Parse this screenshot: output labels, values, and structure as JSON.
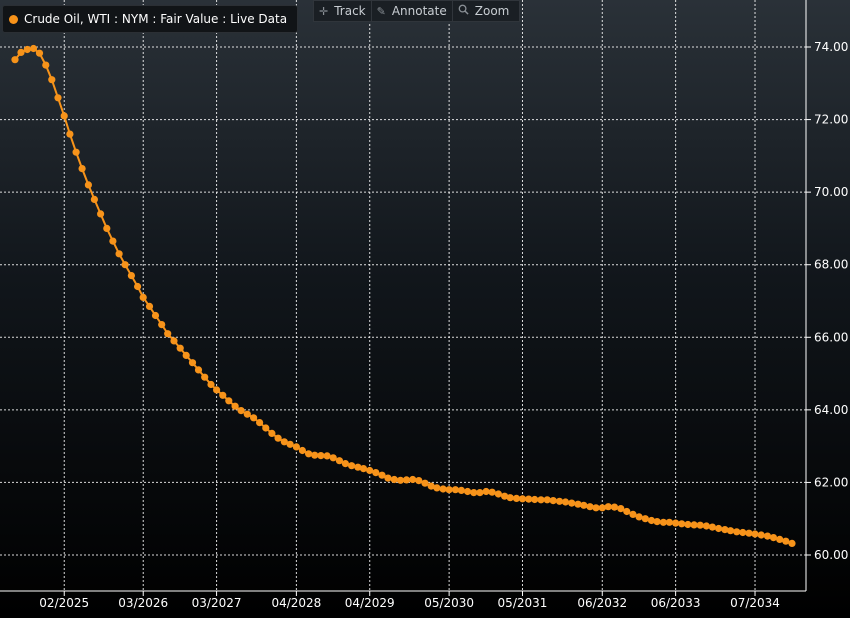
{
  "legend": {
    "label": "Crude Oil, WTI : NYM : Fair Value : Live Data",
    "color": "#f7931a"
  },
  "toolbar": {
    "track_label": "Track",
    "annotate_label": "Annotate",
    "zoom_label": "Zoom",
    "track_icon": "crosshair-icon",
    "annotate_icon": "pencil-icon",
    "zoom_icon": "magnifier-icon"
  },
  "chart_data": {
    "type": "line",
    "title": "",
    "xlabel": "",
    "ylabel": "",
    "ylim": [
      59.3,
      75.2
    ],
    "xlim": [
      "2024-06-01",
      "2035-06-01"
    ],
    "grid": true,
    "grid_color": "#ffffff",
    "line_color": "#f7931a",
    "yticks": [
      60,
      62,
      64,
      66,
      68,
      70,
      72,
      74
    ],
    "ytick_labels": [
      "60.00",
      "62.00",
      "64.00",
      "66.00",
      "68.00",
      "70.00",
      "72.00",
      "74.00"
    ],
    "xticks": [
      "2025-02-01",
      "2026-03-01",
      "2027-03-01",
      "2028-04-01",
      "2029-04-01",
      "2030-05-01",
      "2031-05-01",
      "2032-06-01",
      "2033-06-01",
      "2034-07-01"
    ],
    "xtick_labels": [
      "02/2025",
      "03/2026",
      "03/2027",
      "04/2028",
      "04/2029",
      "05/2030",
      "05/2031",
      "06/2032",
      "06/2033",
      "07/2034"
    ],
    "series": [
      {
        "points": [
          [
            "2024-06-01",
            73.65
          ],
          [
            "2024-07-01",
            73.85
          ],
          [
            "2024-08-01",
            73.93
          ],
          [
            "2024-09-01",
            73.96
          ],
          [
            "2024-10-01",
            73.83
          ],
          [
            "2024-11-01",
            73.5
          ],
          [
            "2024-12-01",
            73.1
          ],
          [
            "2025-01-01",
            72.6
          ],
          [
            "2025-02-01",
            72.1
          ],
          [
            "2025-03-01",
            71.6
          ],
          [
            "2025-04-01",
            71.1
          ],
          [
            "2025-05-01",
            70.65
          ],
          [
            "2025-06-01",
            70.2
          ],
          [
            "2025-07-01",
            69.8
          ],
          [
            "2025-08-01",
            69.4
          ],
          [
            "2025-09-01",
            69.0
          ],
          [
            "2025-10-01",
            68.65
          ],
          [
            "2025-11-01",
            68.3
          ],
          [
            "2025-12-01",
            68.0
          ],
          [
            "2026-01-01",
            67.7
          ],
          [
            "2026-02-01",
            67.4
          ],
          [
            "2026-03-01",
            67.1
          ],
          [
            "2026-04-01",
            66.85
          ],
          [
            "2026-05-01",
            66.6
          ],
          [
            "2026-06-01",
            66.35
          ],
          [
            "2026-07-01",
            66.1
          ],
          [
            "2026-08-01",
            65.9
          ],
          [
            "2026-09-01",
            65.7
          ],
          [
            "2026-10-01",
            65.5
          ],
          [
            "2026-11-01",
            65.3
          ],
          [
            "2026-12-01",
            65.1
          ],
          [
            "2027-01-01",
            64.9
          ],
          [
            "2027-02-01",
            64.7
          ],
          [
            "2027-03-01",
            64.55
          ],
          [
            "2027-04-01",
            64.4
          ],
          [
            "2027-05-01",
            64.25
          ],
          [
            "2027-06-01",
            64.1
          ],
          [
            "2027-07-01",
            63.98
          ],
          [
            "2027-08-01",
            63.88
          ],
          [
            "2027-09-01",
            63.78
          ],
          [
            "2027-10-01",
            63.65
          ],
          [
            "2027-11-01",
            63.5
          ],
          [
            "2027-12-01",
            63.35
          ],
          [
            "2028-01-01",
            63.22
          ],
          [
            "2028-02-01",
            63.12
          ],
          [
            "2028-03-01",
            63.05
          ],
          [
            "2028-04-01",
            62.98
          ],
          [
            "2028-05-01",
            62.88
          ],
          [
            "2028-06-01",
            62.79
          ],
          [
            "2028-07-01",
            62.75
          ],
          [
            "2028-08-01",
            62.74
          ],
          [
            "2028-09-01",
            62.73
          ],
          [
            "2028-10-01",
            62.68
          ],
          [
            "2028-11-01",
            62.6
          ],
          [
            "2028-12-01",
            62.52
          ],
          [
            "2029-01-01",
            62.46
          ],
          [
            "2029-02-01",
            62.42
          ],
          [
            "2029-03-01",
            62.38
          ],
          [
            "2029-04-01",
            62.33
          ],
          [
            "2029-05-01",
            62.27
          ],
          [
            "2029-06-01",
            62.2
          ],
          [
            "2029-07-01",
            62.12
          ],
          [
            "2029-08-01",
            62.08
          ],
          [
            "2029-09-01",
            62.06
          ],
          [
            "2029-10-01",
            62.07
          ],
          [
            "2029-11-01",
            62.08
          ],
          [
            "2029-12-01",
            62.05
          ],
          [
            "2030-01-01",
            61.98
          ],
          [
            "2030-02-01",
            61.9
          ],
          [
            "2030-03-01",
            61.85
          ],
          [
            "2030-04-01",
            61.82
          ],
          [
            "2030-05-01",
            61.8
          ],
          [
            "2030-06-01",
            61.8
          ],
          [
            "2030-07-01",
            61.78
          ],
          [
            "2030-08-01",
            61.75
          ],
          [
            "2030-09-01",
            61.72
          ],
          [
            "2030-10-01",
            61.72
          ],
          [
            "2030-11-01",
            61.75
          ],
          [
            "2030-12-01",
            61.73
          ],
          [
            "2031-01-01",
            61.68
          ],
          [
            "2031-02-01",
            61.62
          ],
          [
            "2031-03-01",
            61.58
          ],
          [
            "2031-04-01",
            61.56
          ],
          [
            "2031-05-01",
            61.55
          ],
          [
            "2031-06-01",
            61.54
          ],
          [
            "2031-07-01",
            61.53
          ],
          [
            "2031-08-01",
            61.52
          ],
          [
            "2031-09-01",
            61.52
          ],
          [
            "2031-10-01",
            61.5
          ],
          [
            "2031-11-01",
            61.48
          ],
          [
            "2031-12-01",
            61.46
          ],
          [
            "2032-01-01",
            61.43
          ],
          [
            "2032-02-01",
            61.4
          ],
          [
            "2032-03-01",
            61.37
          ],
          [
            "2032-04-01",
            61.33
          ],
          [
            "2032-05-01",
            61.3
          ],
          [
            "2032-06-01",
            61.3
          ],
          [
            "2032-07-01",
            61.33
          ],
          [
            "2032-08-01",
            61.32
          ],
          [
            "2032-09-01",
            61.28
          ],
          [
            "2032-10-01",
            61.2
          ],
          [
            "2032-11-01",
            61.12
          ],
          [
            "2032-12-01",
            61.05
          ],
          [
            "2033-01-01",
            61.0
          ],
          [
            "2033-02-01",
            60.95
          ],
          [
            "2033-03-01",
            60.92
          ],
          [
            "2033-04-01",
            60.9
          ],
          [
            "2033-05-01",
            60.9
          ],
          [
            "2033-06-01",
            60.88
          ],
          [
            "2033-07-01",
            60.86
          ],
          [
            "2033-08-01",
            60.84
          ],
          [
            "2033-09-01",
            60.83
          ],
          [
            "2033-10-01",
            60.82
          ],
          [
            "2033-11-01",
            60.8
          ],
          [
            "2033-12-01",
            60.77
          ],
          [
            "2034-01-01",
            60.73
          ],
          [
            "2034-02-01",
            60.7
          ],
          [
            "2034-03-01",
            60.67
          ],
          [
            "2034-04-01",
            60.64
          ],
          [
            "2034-05-01",
            60.62
          ],
          [
            "2034-06-01",
            60.6
          ],
          [
            "2034-07-01",
            60.58
          ],
          [
            "2034-08-01",
            60.55
          ],
          [
            "2034-09-01",
            60.52
          ],
          [
            "2034-10-01",
            60.48
          ],
          [
            "2034-11-01",
            60.43
          ],
          [
            "2034-12-01",
            60.38
          ],
          [
            "2035-01-01",
            60.32
          ]
        ]
      }
    ]
  }
}
